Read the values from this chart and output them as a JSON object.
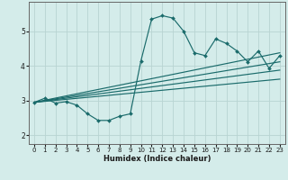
{
  "xlabel": "Humidex (Indice chaleur)",
  "bg_color": "#d4ecea",
  "grid_color": "#b8d4d2",
  "line_color": "#1a6b6b",
  "xlim": [
    -0.5,
    23.5
  ],
  "ylim": [
    1.75,
    5.85
  ],
  "xticks": [
    0,
    1,
    2,
    3,
    4,
    5,
    6,
    7,
    8,
    9,
    10,
    11,
    12,
    13,
    14,
    15,
    16,
    17,
    18,
    19,
    20,
    21,
    22,
    23
  ],
  "yticks": [
    2,
    3,
    4,
    5
  ],
  "main_line": {
    "x": [
      0,
      1,
      2,
      3,
      4,
      5,
      6,
      7,
      8,
      9,
      10,
      11,
      12,
      13,
      14,
      15,
      16,
      17,
      18,
      19,
      20,
      21,
      22,
      23
    ],
    "y": [
      2.95,
      3.07,
      2.93,
      2.97,
      2.87,
      2.62,
      2.43,
      2.43,
      2.55,
      2.62,
      4.15,
      5.35,
      5.45,
      5.38,
      5.0,
      4.38,
      4.3,
      4.78,
      4.65,
      4.43,
      4.12,
      4.43,
      3.93,
      4.3
    ]
  },
  "straight_lines": [
    {
      "x": [
        0,
        23
      ],
      "y": [
        2.95,
        4.38
      ]
    },
    {
      "x": [
        0,
        23
      ],
      "y": [
        2.95,
        4.12
      ]
    },
    {
      "x": [
        0,
        23
      ],
      "y": [
        2.95,
        3.88
      ]
    },
    {
      "x": [
        0,
        23
      ],
      "y": [
        2.95,
        3.62
      ]
    }
  ]
}
